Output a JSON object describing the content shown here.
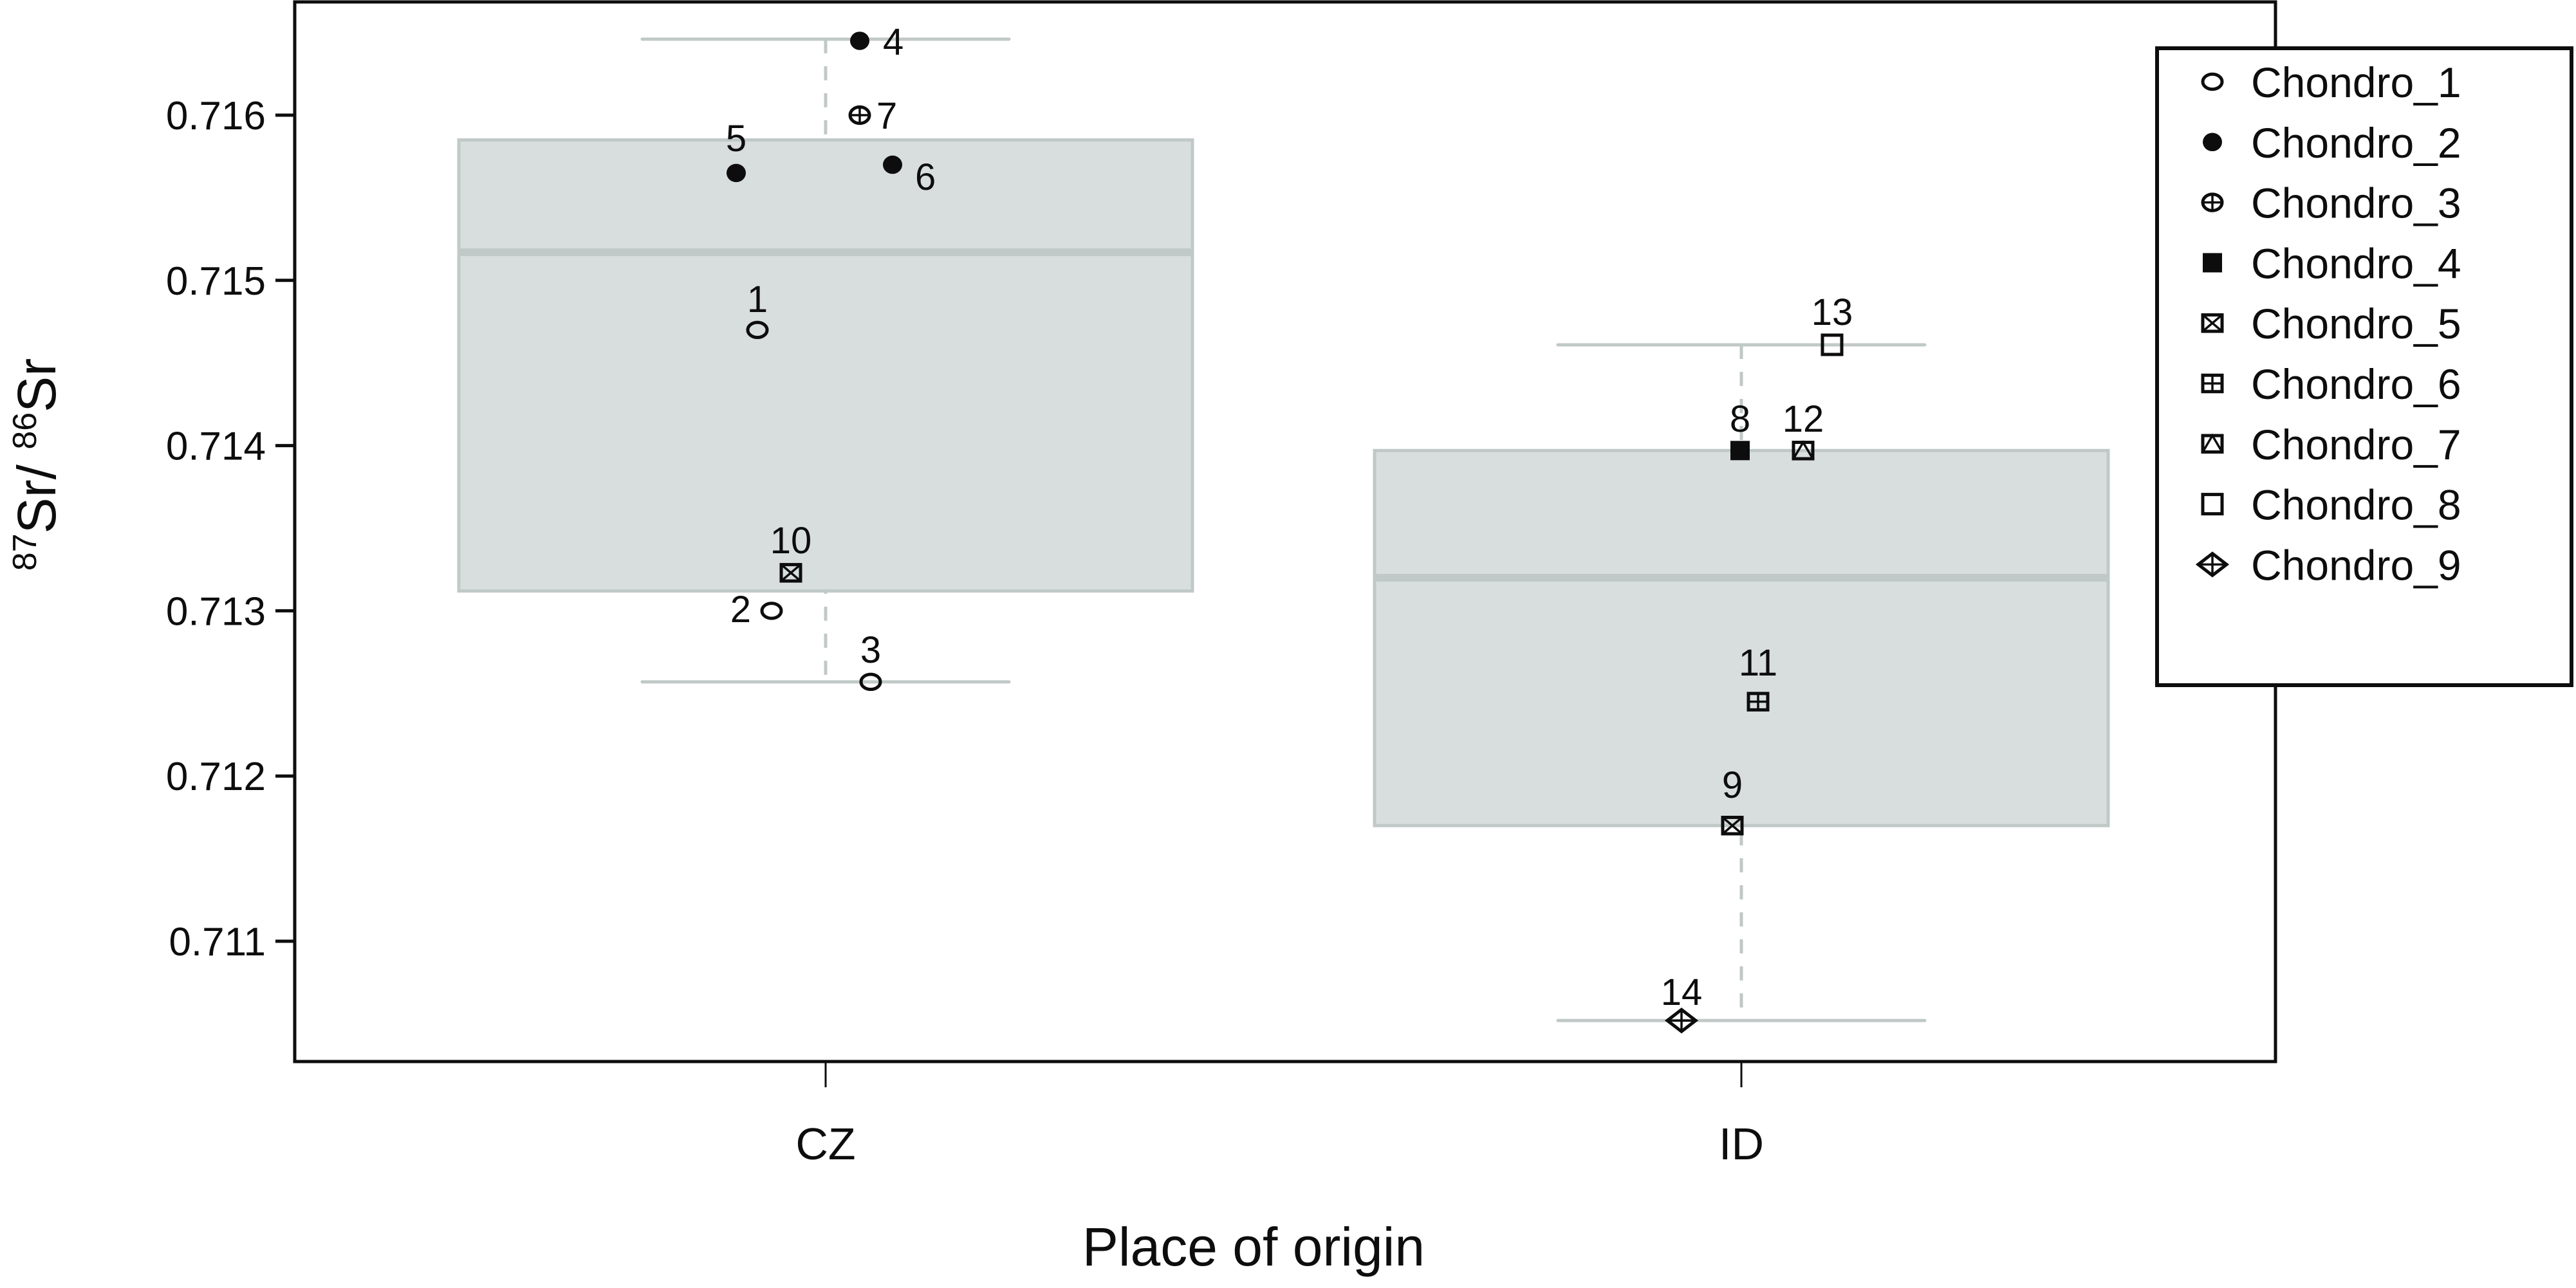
{
  "chart_data": {
    "type": "box",
    "title": "",
    "xlabel": "Place of origin",
    "ylabel": "87Sr/86Sr",
    "ylabel_parts": {
      "sup1": "87",
      "base1": "Sr/ ",
      "sup2": "86",
      "base2": "Sr"
    },
    "ylim": [
      0.71045,
      0.71672
    ],
    "yticks": [
      0.711,
      0.712,
      0.713,
      0.714,
      0.715,
      0.716
    ],
    "ytick_labels": [
      "0.711",
      "0.712",
      "0.713",
      "0.714",
      "0.715",
      "0.716"
    ],
    "categories": [
      "CZ",
      "ID"
    ],
    "grid": false,
    "legend_position": "right-outside",
    "boxes": [
      {
        "category": "CZ",
        "whisker_low": 0.71257,
        "q1": 0.71312,
        "median": 0.71517,
        "q3": 0.71585,
        "whisker_high": 0.71646
      },
      {
        "category": "ID",
        "whisker_low": 0.71052,
        "q1": 0.7117,
        "median": 0.7132,
        "q3": 0.71397,
        "whisker_high": 0.71461
      }
    ],
    "points": [
      {
        "id": "1",
        "category": "CZ",
        "series": "Chondro_1",
        "value": 0.7147
      },
      {
        "id": "2",
        "category": "CZ",
        "series": "Chondro_1",
        "value": 0.713
      },
      {
        "id": "3",
        "category": "CZ",
        "series": "Chondro_1",
        "value": 0.71257
      },
      {
        "id": "4",
        "category": "CZ",
        "series": "Chondro_2",
        "value": 0.71645
      },
      {
        "id": "5",
        "category": "CZ",
        "series": "Chondro_2",
        "value": 0.71565
      },
      {
        "id": "6",
        "category": "CZ",
        "series": "Chondro_2",
        "value": 0.7157
      },
      {
        "id": "7",
        "category": "CZ",
        "series": "Chondro_3",
        "value": 0.716
      },
      {
        "id": "8",
        "category": "ID",
        "series": "Chondro_4",
        "value": 0.71397
      },
      {
        "id": "9",
        "category": "ID",
        "series": "Chondro_5",
        "value": 0.7117
      },
      {
        "id": "10",
        "category": "CZ",
        "series": "Chondro_5",
        "value": 0.71323
      },
      {
        "id": "11",
        "category": "ID",
        "series": "Chondro_6",
        "value": 0.71245
      },
      {
        "id": "12",
        "category": "ID",
        "series": "Chondro_7",
        "value": 0.71397
      },
      {
        "id": "13",
        "category": "ID",
        "series": "Chondro_8",
        "value": 0.71461
      },
      {
        "id": "14",
        "category": "ID",
        "series": "Chondro_9",
        "value": 0.71052
      }
    ],
    "legend": [
      {
        "label": "Chondro_1",
        "marker": "open-circle"
      },
      {
        "label": "Chondro_2",
        "marker": "filled-circle"
      },
      {
        "label": "Chondro_3",
        "marker": "circle-plus"
      },
      {
        "label": "Chondro_4",
        "marker": "filled-square"
      },
      {
        "label": "Chondro_5",
        "marker": "square-x"
      },
      {
        "label": "Chondro_6",
        "marker": "square-plus"
      },
      {
        "label": "Chondro_7",
        "marker": "square-triangle"
      },
      {
        "label": "Chondro_8",
        "marker": "open-square"
      },
      {
        "label": "Chondro_9",
        "marker": "diamond-plus"
      }
    ],
    "colors": {
      "box_fill": "#d8dede",
      "box_border": "#c0c9c7",
      "median": "#c0c9c7",
      "whisker": "#c0c9c7",
      "marker": "#0d0d0d",
      "axis": "#0d0d0d"
    }
  }
}
